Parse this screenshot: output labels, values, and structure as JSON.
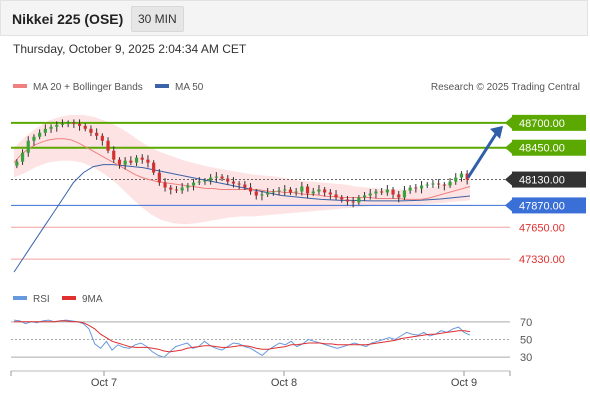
{
  "header": {
    "title": "Nikkei 225 (OSE)",
    "interval": "30 MIN"
  },
  "timestamp": "Thursday, October 9, 2025 2:04:34 AM CET",
  "legend": [
    {
      "label": "MA 20 + Bollinger Bands",
      "color": "#f08080"
    },
    {
      "label": "MA 50",
      "color": "#3a63a8"
    }
  ],
  "credit": "Research © 2025 Trading Central",
  "chart_data": {
    "type": "candlestick",
    "price_ylim": [
      47100,
      48950
    ],
    "levels": [
      {
        "label": "48700.00",
        "value": 48700,
        "kind": "resistance",
        "color": "#5aa800"
      },
      {
        "label": "48450.00",
        "value": 48450,
        "kind": "resistance",
        "color": "#5aa800"
      },
      {
        "label": "48130.00",
        "value": 48130,
        "kind": "last",
        "color": "#333333"
      },
      {
        "label": "47870.00",
        "value": 47870,
        "kind": "pivot",
        "color": "#3a6fd8"
      },
      {
        "label": "47650.00",
        "value": 47650,
        "kind": "support",
        "color": "#e05555"
      },
      {
        "label": "47330.00",
        "value": 47330,
        "kind": "support",
        "color": "#e05555"
      }
    ],
    "arrow_target": 48700,
    "x_ticks": [
      "Oct 7",
      "Oct 8",
      "Oct 9"
    ],
    "candles_close": [
      48310,
      48400,
      48520,
      48560,
      48600,
      48640,
      48660,
      48680,
      48690,
      48700,
      48690,
      48670,
      48640,
      48600,
      48570,
      48520,
      48420,
      48330,
      48280,
      48320,
      48300,
      48350,
      48330,
      48300,
      48200,
      48100,
      48050,
      48030,
      48020,
      48050,
      48070,
      48100,
      48110,
      48120,
      48150,
      48160,
      48140,
      48110,
      48090,
      48080,
      48050,
      48010,
      47970,
      47980,
      48000,
      48010,
      48020,
      48030,
      48000,
      48010,
      48060,
      47990,
      48010,
      48030,
      48000,
      47980,
      47950,
      47930,
      47910,
      47900,
      47950,
      47970,
      47990,
      48010,
      48000,
      48030,
      47980,
      47950,
      48020,
      48050,
      48040,
      48070,
      48080,
      48090,
      48080,
      48070,
      48110,
      48150,
      48190,
      48130
    ],
    "ma20": [
      48300,
      48380,
      48440,
      48480,
      48510,
      48530,
      48540,
      48540,
      48530,
      48500,
      48460,
      48420,
      48380,
      48340,
      48300,
      48260,
      48220,
      48180,
      48150,
      48130,
      48110,
      48100,
      48090,
      48080,
      48070,
      48060,
      48050,
      48040,
      48040,
      48030,
      48030,
      48030,
      48030,
      48030,
      48030,
      48020,
      48010,
      48010,
      48000,
      48000,
      47990,
      47980,
      47980,
      47970,
      47960,
      47960,
      47950,
      47950,
      47950,
      47950,
      47950,
      47940,
      47940,
      47940,
      47940,
      47930,
      47930,
      47930,
      47940,
      47960,
      47980,
      48000,
      48020,
      48040,
      48060
    ],
    "ma50": [
      47200,
      47350,
      47500,
      47650,
      47800,
      47950,
      48100,
      48200,
      48260,
      48280,
      48280,
      48270,
      48260,
      48250,
      48230,
      48210,
      48190,
      48170,
      48150,
      48130,
      48110,
      48090,
      48070,
      48050,
      48030,
      48010,
      47990,
      47970,
      47960,
      47950,
      47940,
      47930,
      47925,
      47920,
      47920,
      47918,
      47915,
      47915,
      47915,
      47915,
      47918,
      47922,
      47928,
      47935,
      47945,
      47955,
      47965
    ],
    "bb_upper": [
      48450,
      48560,
      48650,
      48720,
      48760,
      48780,
      48780,
      48760,
      48720,
      48670,
      48600,
      48520,
      48450,
      48400,
      48360,
      48320,
      48290,
      48260,
      48240,
      48220,
      48200,
      48180,
      48170,
      48160,
      48140,
      48120,
      48110,
      48100,
      48090,
      48080,
      48060,
      48050,
      48040,
      48030,
      48030,
      48030,
      48040,
      48060,
      48090,
      48120,
      48140
    ],
    "bb_lower": [
      48150,
      48200,
      48260,
      48300,
      48320,
      48320,
      48300,
      48250,
      48180,
      48090,
      47980,
      47870,
      47780,
      47720,
      47690,
      47680,
      47690,
      47710,
      47730,
      47750,
      47760,
      47760,
      47770,
      47780,
      47790,
      47800,
      47810,
      47820,
      47830,
      47840,
      47850,
      47860,
      47870,
      47870,
      47870,
      47870,
      47880,
      47890,
      47900,
      47910,
      47920
    ],
    "rsi": {
      "levels": [
        70,
        50,
        30
      ],
      "ylim": [
        20,
        80
      ],
      "legend": [
        {
          "label": "RSI",
          "color": "#6699dd"
        },
        {
          "label": "9MA",
          "color": "#e03030"
        }
      ],
      "rsi_values": [
        72,
        71,
        68,
        70,
        69,
        71,
        72,
        70,
        71,
        72,
        71,
        70,
        68,
        62,
        45,
        40,
        48,
        38,
        44,
        41,
        40,
        44,
        46,
        42,
        36,
        32,
        30,
        36,
        42,
        44,
        46,
        40,
        42,
        48,
        43,
        40,
        38,
        42,
        46,
        45,
        42,
        40,
        36,
        32,
        38,
        42,
        46,
        44,
        48,
        42,
        45,
        50,
        48,
        46,
        44,
        42,
        40,
        42,
        44,
        46,
        44,
        42,
        46,
        48,
        50,
        52,
        50,
        54,
        58,
        56,
        55,
        58,
        54,
        56,
        60,
        58,
        62,
        64,
        58,
        55
      ],
      "ma_values": [
        70,
        70,
        70,
        70,
        70,
        70,
        70,
        70,
        71,
        71,
        70,
        70,
        69,
        66,
        62,
        56,
        52,
        48,
        46,
        44,
        42,
        41,
        41,
        41,
        40,
        39,
        37,
        36,
        37,
        38,
        40,
        41,
        42,
        43,
        43,
        42,
        41,
        41,
        42,
        43,
        43,
        42,
        40,
        39,
        39,
        40,
        41,
        42,
        44,
        44,
        45,
        46,
        46,
        46,
        45,
        45,
        44,
        44,
        44,
        44,
        44,
        44,
        45,
        46,
        47,
        48,
        49,
        51,
        52,
        53,
        54,
        55,
        56,
        56,
        57,
        58,
        59,
        60,
        60,
        59
      ]
    }
  }
}
